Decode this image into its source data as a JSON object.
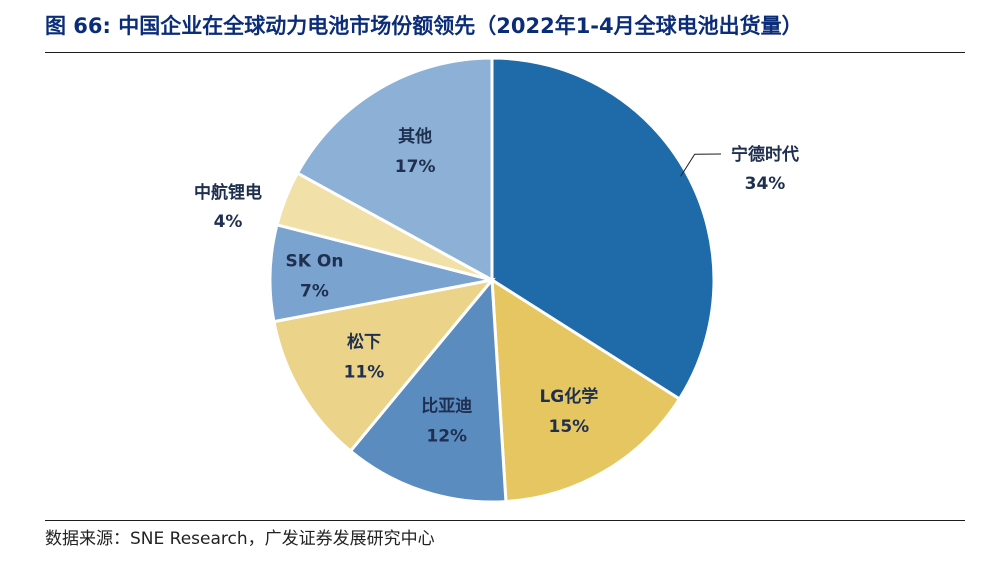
{
  "title": "图 66: 中国企业在全球动力电池市场份额领先（2022年1-4月全球电池出货量）",
  "source": "数据来源：SNE Research，广发证券发展研究中心",
  "chart_data": {
    "type": "pie",
    "slices": [
      {
        "label": "宁德时代",
        "value": 34,
        "value_label": "34%",
        "color": "#1f6aa8"
      },
      {
        "label": "LG化学",
        "value": 15,
        "value_label": "15%",
        "color": "#e6c661"
      },
      {
        "label": "比亚迪",
        "value": 12,
        "value_label": "12%",
        "color": "#5b8cc0"
      },
      {
        "label": "松下",
        "value": 11,
        "value_label": "11%",
        "color": "#ebd38a"
      },
      {
        "label": "SK On",
        "value": 7,
        "value_label": "7%",
        "color": "#7aa3cf"
      },
      {
        "label": "中航锂电",
        "value": 4,
        "value_label": "4%",
        "color": "#f1e0a8"
      },
      {
        "label": "其他",
        "value": 17,
        "value_label": "17%",
        "color": "#8db1d6"
      }
    ]
  }
}
